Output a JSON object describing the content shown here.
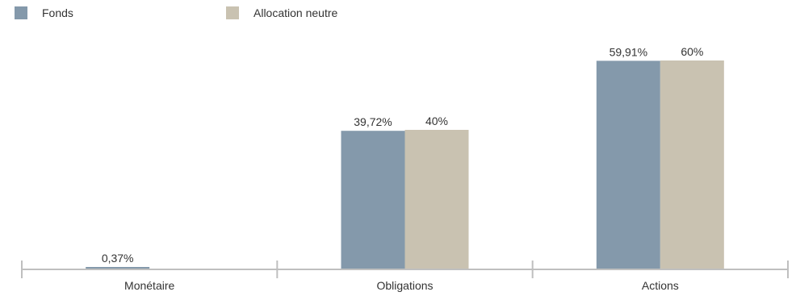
{
  "legend": {
    "items": [
      {
        "label": "Fonds",
        "color": "#8499ab"
      },
      {
        "label": "Allocation neutre",
        "color": "#c9c2b1"
      }
    ]
  },
  "chart_data": {
    "type": "bar",
    "categories": [
      "Monétaire",
      "Obligations",
      "Actions"
    ],
    "series": [
      {
        "name": "Fonds",
        "values": [
          0.37,
          39.72,
          59.91
        ],
        "labels": [
          "0,37%",
          "39,72%",
          "59,91%"
        ],
        "color": "#8499ab"
      },
      {
        "name": "Allocation neutre",
        "values": [
          0,
          40,
          60
        ],
        "labels": [
          "",
          "40%",
          "60%"
        ],
        "color": "#c9c2b1"
      }
    ],
    "ylim": [
      0,
      60
    ],
    "grid": false,
    "legend_position": "top-left",
    "axis_color": "#bfbfbf"
  }
}
